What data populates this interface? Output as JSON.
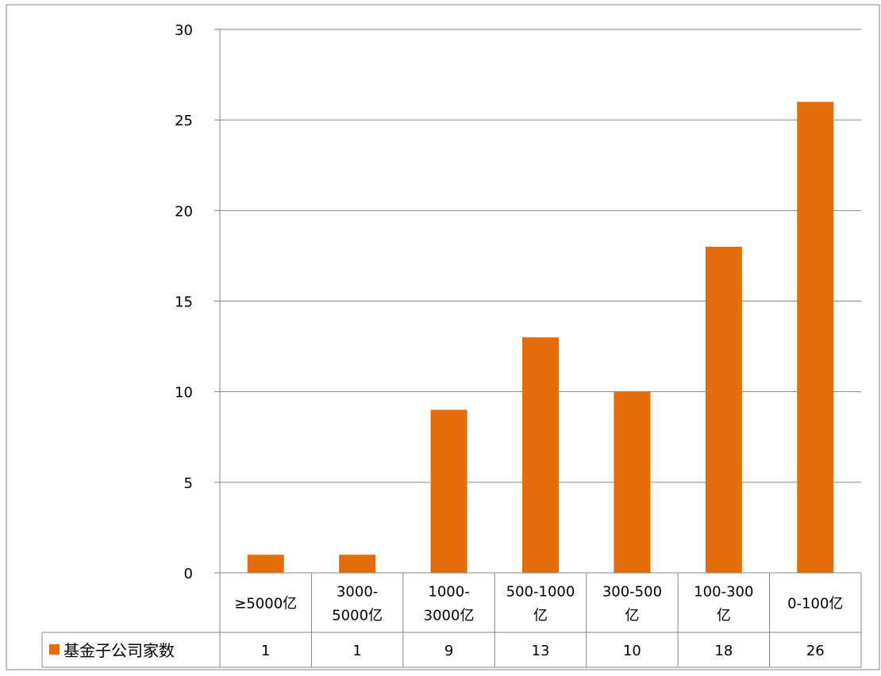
{
  "chart_data": {
    "type": "bar",
    "categories": [
      [
        "≥5000亿"
      ],
      [
        "3000-",
        "5000亿"
      ],
      [
        "1000-",
        "3000亿"
      ],
      [
        "500-1000",
        "亿"
      ],
      [
        "300-500",
        "亿"
      ],
      [
        "100-300",
        "亿"
      ],
      [
        "0-100亿"
      ]
    ],
    "series": [
      {
        "name": "基金子公司家数",
        "values": [
          1,
          1,
          9,
          13,
          10,
          18,
          26
        ]
      }
    ],
    "data_table": {
      "row_label": "基金子公司家数",
      "values": [
        "1",
        "1",
        "9",
        "13",
        "10",
        "18",
        "26"
      ]
    },
    "ylim": [
      0,
      30
    ],
    "yticks": [
      "0",
      "5",
      "10",
      "15",
      "20",
      "25",
      "30"
    ],
    "ytick_values": [
      0,
      5,
      10,
      15,
      20,
      25,
      30
    ],
    "grid": true,
    "legend_placement": "data-table-left",
    "colors": {
      "bar": "#E46C0A",
      "grid": "#868686",
      "axis": "#868686",
      "border": "#868686",
      "text": "#000000"
    }
  }
}
